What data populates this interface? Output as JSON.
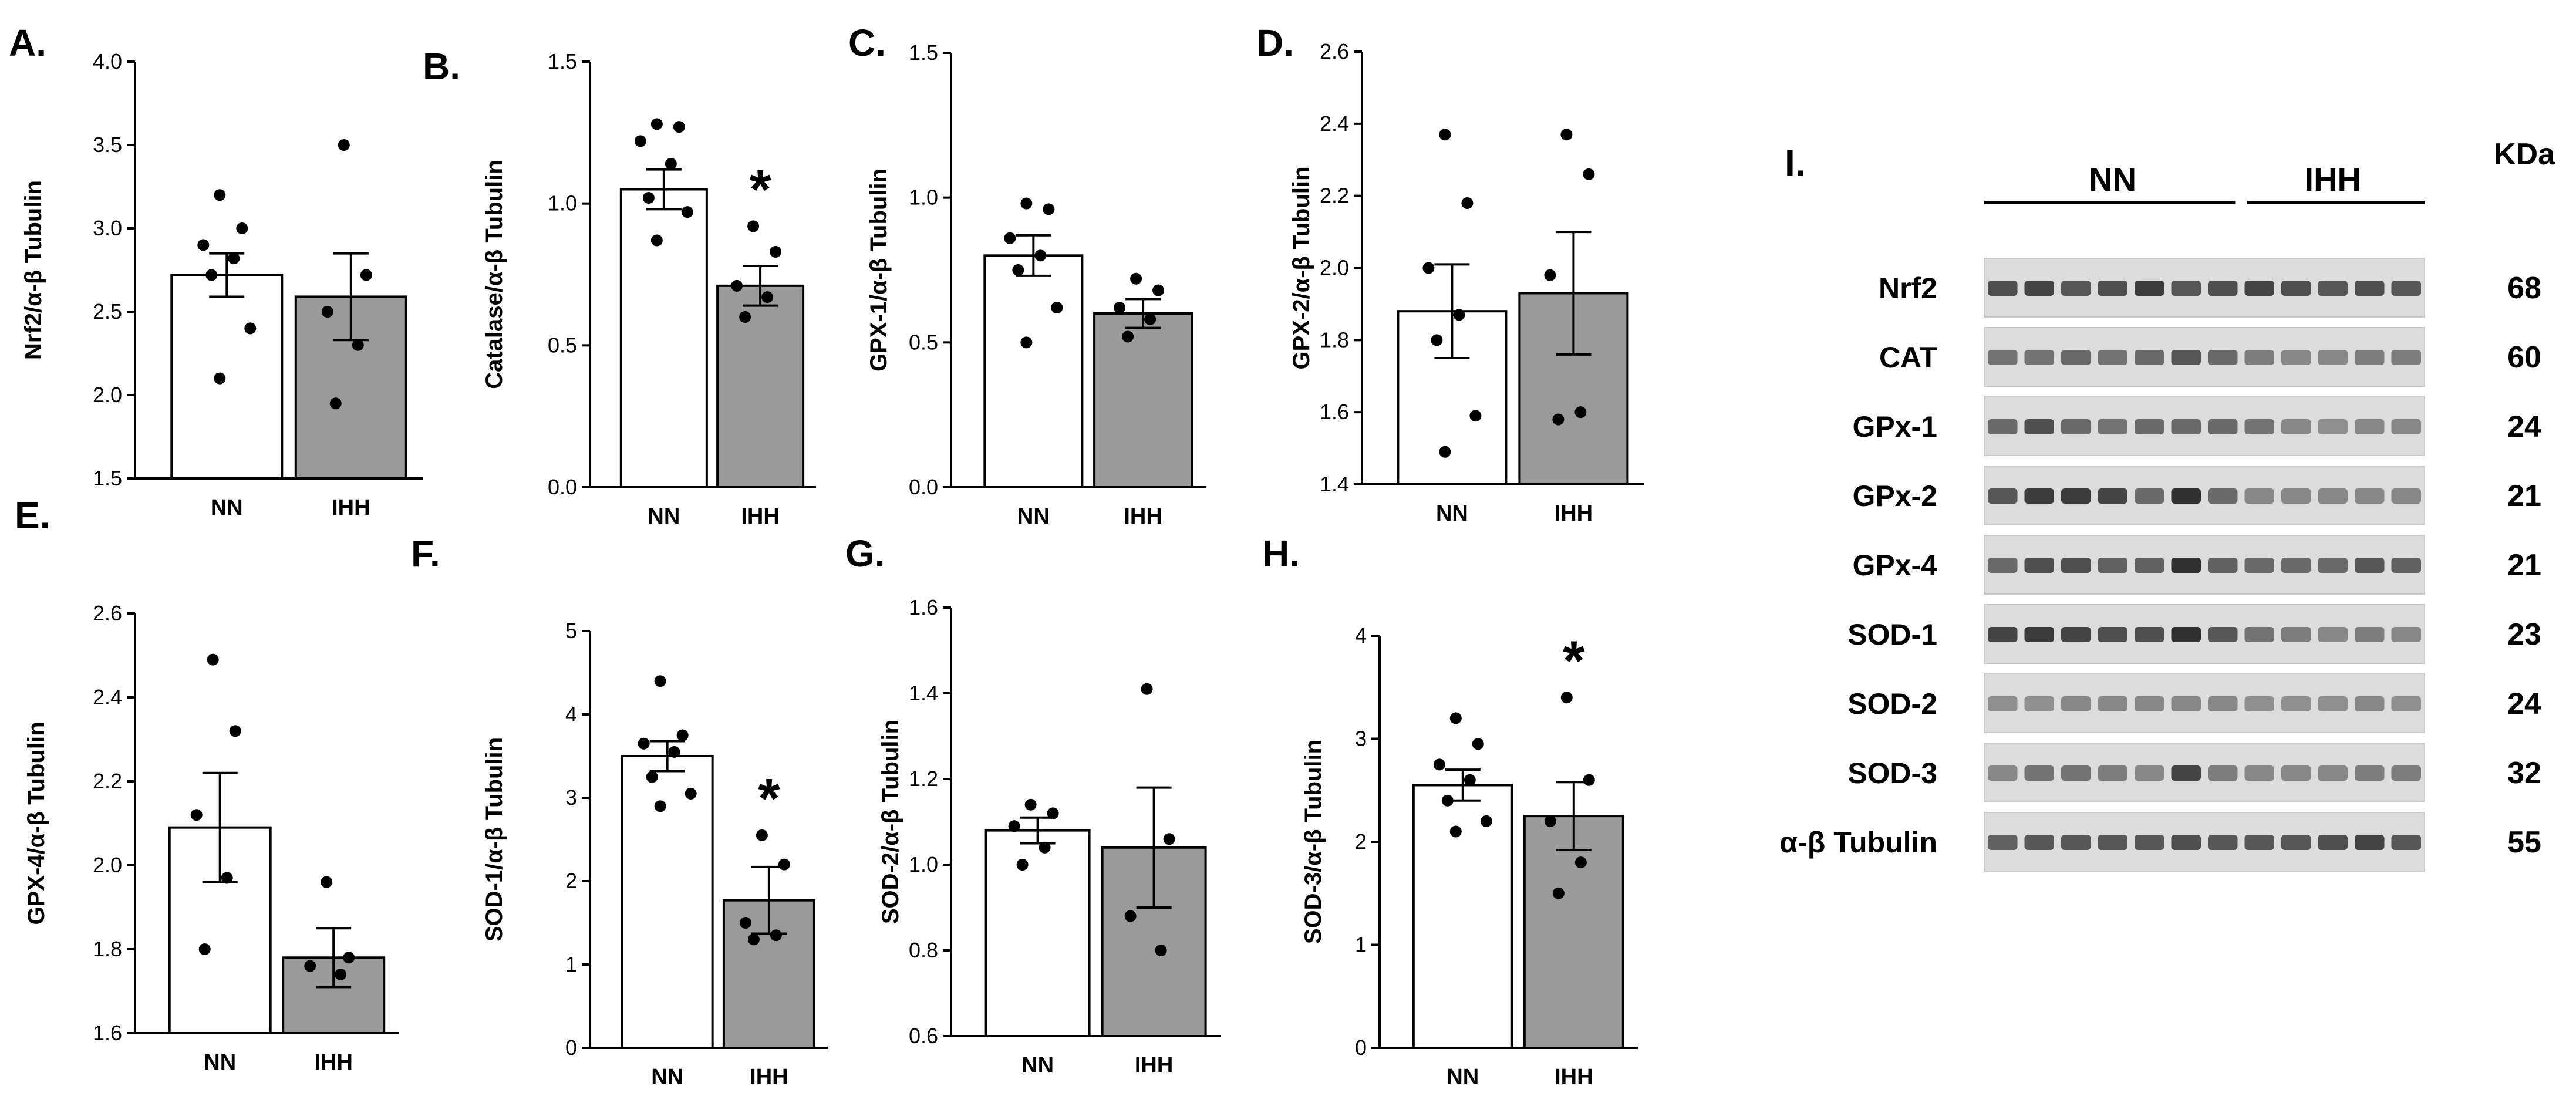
{
  "chart_data": [
    {
      "id": "A",
      "panel_label": "A.",
      "type": "bar",
      "ylabel": "Nrf2/α-β Tubulin",
      "categories": [
        "NN",
        "IHH"
      ],
      "values": [
        2.72,
        2.59
      ],
      "sem": [
        0.13,
        0.26
      ],
      "points": [
        [
          3.2,
          3.0,
          2.9,
          2.82,
          2.72,
          2.4,
          2.1
        ],
        [
          3.5,
          2.72,
          2.5,
          2.3,
          1.95
        ]
      ],
      "significance": [
        "",
        ""
      ],
      "ylim": [
        1.5,
        4.0
      ],
      "yticks": [
        "1.5",
        "2.0",
        "2.5",
        "3.0",
        "3.5",
        "4.0"
      ]
    },
    {
      "id": "B",
      "panel_label": "B.",
      "type": "bar",
      "ylabel": "Catalase/α-β Tubulin",
      "categories": [
        "NN",
        "IHH"
      ],
      "values": [
        1.05,
        0.71
      ],
      "sem": [
        0.07,
        0.07
      ],
      "points": [
        [
          1.28,
          1.27,
          1.22,
          1.14,
          1.02,
          0.97,
          0.87
        ],
        [
          0.92,
          0.83,
          0.71,
          0.67,
          0.6
        ]
      ],
      "significance": [
        "",
        "*"
      ],
      "ylim": [
        0.0,
        1.5
      ],
      "yticks": [
        "0.0",
        "0.5",
        "1.0",
        "1.5"
      ]
    },
    {
      "id": "C",
      "panel_label": "C.",
      "type": "bar",
      "ylabel": "GPX-1/α-β Tubulin",
      "categories": [
        "NN",
        "IHH"
      ],
      "values": [
        0.8,
        0.6
      ],
      "sem": [
        0.07,
        0.05
      ],
      "points": [
        [
          0.98,
          0.96,
          0.86,
          0.8,
          0.75,
          0.62,
          0.5
        ],
        [
          0.72,
          0.68,
          0.62,
          0.58,
          0.52
        ]
      ],
      "significance": [
        "",
        ""
      ],
      "ylim": [
        0.0,
        1.5
      ],
      "yticks": [
        "0.0",
        "0.5",
        "1.0",
        "1.5"
      ]
    },
    {
      "id": "D",
      "panel_label": "D.",
      "type": "bar",
      "ylabel": "GPX-2/α-β Tubulin",
      "categories": [
        "NN",
        "IHH"
      ],
      "values": [
        1.88,
        1.93
      ],
      "sem": [
        0.13,
        0.17
      ],
      "points": [
        [
          2.37,
          2.18,
          2.0,
          1.87,
          1.8,
          1.59,
          1.49
        ],
        [
          2.37,
          2.26,
          1.98,
          1.6,
          1.58
        ]
      ],
      "significance": [
        "",
        ""
      ],
      "ylim": [
        1.4,
        2.6
      ],
      "yticks": [
        "1.4",
        "1.6",
        "1.8",
        "2.0",
        "2.2",
        "2.4",
        "2.6"
      ]
    },
    {
      "id": "E",
      "panel_label": "E.",
      "type": "bar",
      "ylabel": "GPX-4/α-β Tubulin",
      "categories": [
        "NN",
        "IHH"
      ],
      "values": [
        2.09,
        1.78
      ],
      "sem": [
        0.13,
        0.07
      ],
      "points": [
        [
          2.49,
          2.32,
          2.12,
          1.97,
          1.8
        ],
        [
          1.96,
          1.78,
          1.76,
          1.74
        ]
      ],
      "significance": [
        "",
        ""
      ],
      "ylim": [
        1.6,
        2.6
      ],
      "yticks": [
        "1.6",
        "1.8",
        "2.0",
        "2.2",
        "2.4",
        "2.6"
      ]
    },
    {
      "id": "F",
      "panel_label": "F.",
      "type": "bar",
      "ylabel": "SOD-1/α-β Tubulin",
      "categories": [
        "NN",
        "IHH"
      ],
      "values": [
        3.5,
        1.77
      ],
      "sem": [
        0.18,
        0.4
      ],
      "points": [
        [
          4.4,
          3.75,
          3.65,
          3.55,
          3.25,
          3.05,
          2.9
        ],
        [
          2.55,
          2.2,
          1.5,
          1.35,
          1.3
        ]
      ],
      "significance": [
        "",
        "*"
      ],
      "ylim": [
        0,
        5
      ],
      "yticks": [
        "0",
        "1",
        "2",
        "3",
        "4",
        "5"
      ]
    },
    {
      "id": "G",
      "panel_label": "G.",
      "type": "bar",
      "ylabel": "SOD-2/α-β Tubulin",
      "categories": [
        "NN",
        "IHH"
      ],
      "values": [
        1.08,
        1.04
      ],
      "sem": [
        0.03,
        0.14
      ],
      "points": [
        [
          1.14,
          1.12,
          1.09,
          1.04,
          1.0
        ],
        [
          1.41,
          1.06,
          0.88,
          0.8
        ]
      ],
      "significance": [
        "",
        ""
      ],
      "ylim": [
        0.6,
        1.6
      ],
      "yticks": [
        "0.6",
        "0.8",
        "1.0",
        "1.2",
        "1.4",
        "1.6"
      ]
    },
    {
      "id": "H",
      "panel_label": "H.",
      "type": "bar",
      "ylabel": "SOD-3/α-β Tubulin",
      "categories": [
        "NN",
        "IHH"
      ],
      "values": [
        2.55,
        2.25
      ],
      "sem": [
        0.15,
        0.33
      ],
      "points": [
        [
          3.2,
          2.95,
          2.75,
          2.6,
          2.4,
          2.2,
          2.1
        ],
        [
          3.4,
          2.6,
          2.2,
          1.8,
          1.5
        ]
      ],
      "significance": [
        "",
        "*"
      ],
      "ylim": [
        0,
        4
      ],
      "yticks": [
        "0",
        "1",
        "2",
        "3",
        "4"
      ]
    }
  ],
  "western_blot": {
    "panel_label": "I.",
    "group_labels": [
      "NN",
      "IHH"
    ],
    "kda_header": "KDa",
    "rows": [
      {
        "label": "Nrf2",
        "kda": "68",
        "intensity": [
          0.75,
          0.8,
          0.7,
          0.75,
          0.85,
          0.7,
          0.75,
          0.8,
          0.75,
          0.7,
          0.75,
          0.7
        ]
      },
      {
        "label": "CAT",
        "kda": "60",
        "intensity": [
          0.55,
          0.55,
          0.6,
          0.55,
          0.6,
          0.7,
          0.6,
          0.5,
          0.45,
          0.45,
          0.5,
          0.5
        ]
      },
      {
        "label": "GPx-1",
        "kda": "24",
        "intensity": [
          0.6,
          0.75,
          0.6,
          0.55,
          0.6,
          0.6,
          0.6,
          0.55,
          0.45,
          0.4,
          0.45,
          0.45
        ]
      },
      {
        "label": "GPx-2",
        "kda": "21",
        "intensity": [
          0.7,
          0.85,
          0.85,
          0.8,
          0.6,
          0.9,
          0.6,
          0.45,
          0.45,
          0.45,
          0.45,
          0.45
        ]
      },
      {
        "label": "GPx-4",
        "kda": "21",
        "intensity": [
          0.6,
          0.75,
          0.75,
          0.65,
          0.65,
          0.9,
          0.65,
          0.6,
          0.6,
          0.6,
          0.7,
          0.65
        ]
      },
      {
        "label": "SOD-1",
        "kda": "23",
        "intensity": [
          0.8,
          0.85,
          0.8,
          0.75,
          0.75,
          0.9,
          0.7,
          0.55,
          0.5,
          0.45,
          0.5,
          0.45
        ]
      },
      {
        "label": "SOD-2",
        "kda": "24",
        "intensity": [
          0.4,
          0.4,
          0.45,
          0.45,
          0.45,
          0.45,
          0.45,
          0.4,
          0.4,
          0.4,
          0.45,
          0.4
        ]
      },
      {
        "label": "SOD-3",
        "kda": "32",
        "intensity": [
          0.45,
          0.55,
          0.55,
          0.5,
          0.45,
          0.8,
          0.5,
          0.45,
          0.45,
          0.45,
          0.5,
          0.5
        ]
      },
      {
        "label": "α-β Tubulin",
        "kda": "55",
        "intensity": [
          0.65,
          0.7,
          0.7,
          0.7,
          0.7,
          0.75,
          0.7,
          0.7,
          0.7,
          0.75,
          0.8,
          0.7
        ]
      }
    ]
  }
}
